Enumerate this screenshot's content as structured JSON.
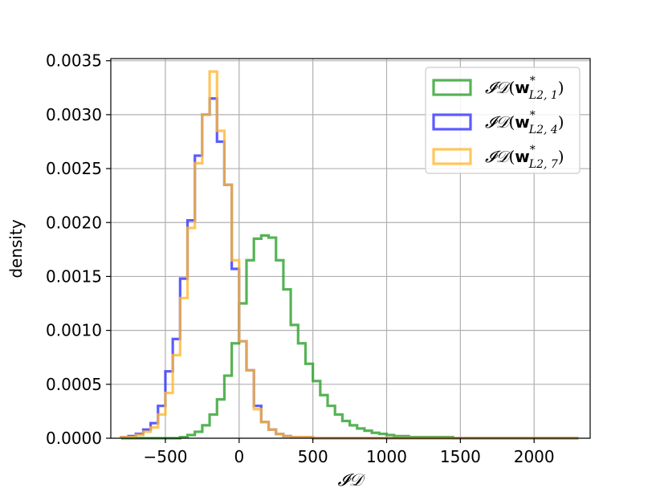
{
  "chart_data": {
    "type": "histogram",
    "xlabel": "𝓘𝒟",
    "ylabel": "density",
    "xlim": [
      -870,
      2380
    ],
    "ylim": [
      0,
      0.00352
    ],
    "xticks": [
      -500,
      0,
      500,
      1000,
      1500,
      2000
    ],
    "xtick_labels": [
      "−500",
      "0",
      "500",
      "1000",
      "1500",
      "2000"
    ],
    "yticks": [
      0,
      0.0005,
      0.001,
      0.0015,
      0.002,
      0.0025,
      0.003,
      0.0035
    ],
    "ytick_labels": [
      "0.0000",
      "0.0005",
      "0.0010",
      "0.0015",
      "0.0020",
      "0.0025",
      "0.0030",
      "0.0035"
    ],
    "grid": true,
    "legend_position": "top-right",
    "bin_start": -800,
    "bin_width": 50,
    "series": [
      {
        "name": "𝓘𝒟(w*_{L2,1})",
        "legend_base": "(",
        "legend_bold": "w",
        "legend_sup": "*",
        "legend_sub": "L2, 1",
        "legend_close": ")",
        "color": "#2ca02c",
        "values": [
          0,
          0,
          0,
          0,
          0,
          0,
          0,
          0,
          1e-05,
          3e-05,
          6e-05,
          0.00012,
          0.00022,
          0.00036,
          0.00058,
          0.00088,
          0.00125,
          0.00165,
          0.00185,
          0.00188,
          0.00186,
          0.00165,
          0.00138,
          0.00105,
          0.00088,
          0.00069,
          0.00053,
          0.0004,
          0.0003,
          0.00022,
          0.00016,
          0.00012,
          9e-05,
          7e-05,
          5e-05,
          4e-05,
          3e-05,
          2e-05,
          2e-05,
          1e-05,
          1e-05,
          1e-05,
          1e-05,
          1e-05,
          1e-05,
          0,
          0,
          0,
          0,
          0,
          0,
          0,
          0,
          0,
          0,
          0,
          0,
          0,
          0,
          0,
          0,
          0
        ]
      },
      {
        "name": "𝓘𝒟(w*_{L2,4})",
        "legend_base": "(",
        "legend_bold": "w",
        "legend_sup": "*",
        "legend_sub": "L2, 4",
        "legend_close": ")",
        "color": "#3333ff",
        "values": [
          1e-05,
          2e-05,
          4e-05,
          8e-05,
          0.00014,
          0.0003,
          0.00062,
          0.00092,
          0.00148,
          0.00202,
          0.00262,
          0.003,
          0.00315,
          0.00275,
          0.00235,
          0.00157,
          0.0009,
          0.00063,
          0.0003,
          0.00015,
          8e-05,
          4e-05,
          2e-05,
          1e-05,
          1e-05,
          1e-05,
          0,
          0,
          0,
          0,
          0,
          0,
          0,
          0,
          0,
          0,
          0,
          0,
          0,
          0,
          0,
          0,
          0,
          0,
          0,
          0,
          0,
          0,
          0,
          0,
          0,
          0,
          0,
          0,
          0,
          0,
          0,
          0,
          0,
          0,
          0,
          0
        ]
      },
      {
        "name": "𝓘𝒟(w*_{L2,7})",
        "legend_base": "(",
        "legend_bold": "w",
        "legend_sup": "*",
        "legend_sub": "L2, 7",
        "legend_close": ")",
        "color": "#ffb833",
        "values": [
          1e-05,
          1e-05,
          3e-05,
          6e-05,
          0.0001,
          0.00022,
          0.00042,
          0.00077,
          0.0013,
          0.00195,
          0.00255,
          0.003,
          0.0034,
          0.00285,
          0.00235,
          0.00165,
          0.0009,
          0.00063,
          0.00027,
          0.00015,
          8e-05,
          4e-05,
          2e-05,
          1e-05,
          1e-05,
          1e-05,
          0,
          0,
          0,
          0,
          0,
          0,
          0,
          0,
          0,
          0,
          0,
          0,
          0,
          0,
          0,
          0,
          0,
          0,
          0,
          0,
          0,
          0,
          0,
          0,
          0,
          0,
          0,
          0,
          0,
          0,
          0,
          0,
          0,
          0,
          0,
          0
        ]
      }
    ]
  }
}
